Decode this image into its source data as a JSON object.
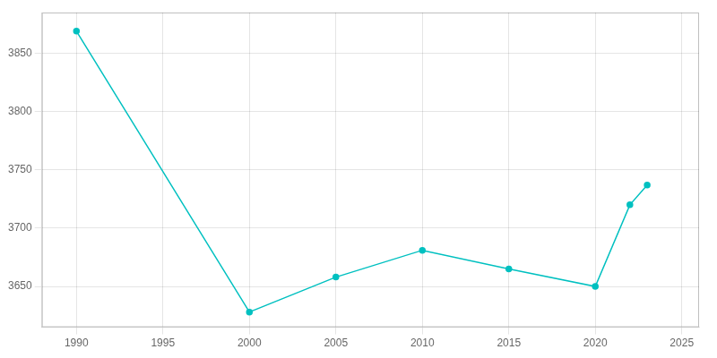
{
  "chart_data": {
    "type": "line",
    "x": [
      1990,
      2000,
      2005,
      2010,
      2015,
      2020,
      2022,
      2023
    ],
    "values": [
      3869,
      3628,
      3658,
      3681,
      3665,
      3650,
      3720,
      3737
    ],
    "color": "#00c0c0",
    "marker": "circle",
    "xlim": [
      1988,
      2026
    ],
    "xticks": [
      1990,
      1995,
      2000,
      2005,
      2010,
      2015,
      2020,
      2025
    ],
    "ylim": [
      3615,
      3885
    ],
    "yticks": [
      3650,
      3700,
      3750,
      3800,
      3850
    ],
    "grid": true
  }
}
